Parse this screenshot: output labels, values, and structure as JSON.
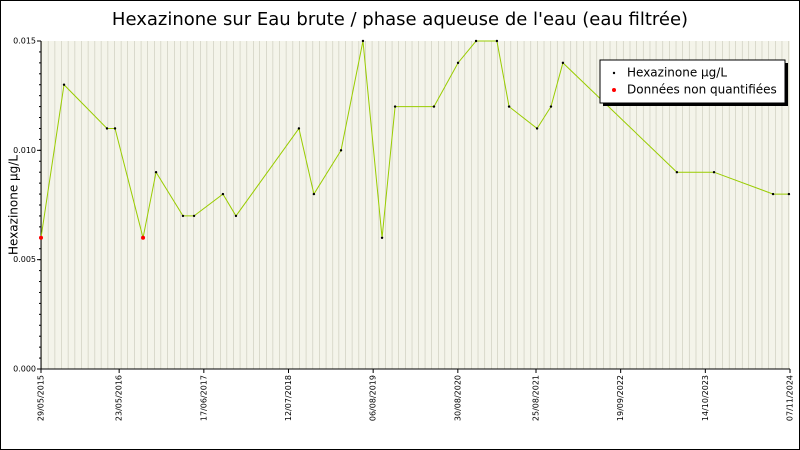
{
  "chart_data": {
    "type": "line",
    "title": "Hexazinone sur Eau brute / phase aqueuse de l'eau (eau filtrée)",
    "y_label": "Hexazinone µg/L",
    "xlim": [
      "2015-05-29",
      "2024-11-07"
    ],
    "xticks": [
      {
        "value": "2015-05-29",
        "label": "29/05/2015"
      },
      {
        "value": "2016-05-23",
        "label": "23/05/2016"
      },
      {
        "value": "2017-06-17",
        "label": "17/06/2017"
      },
      {
        "value": "2018-07-12",
        "label": "12/07/2018"
      },
      {
        "value": "2019-08-06",
        "label": "06/08/2019"
      },
      {
        "value": "2020-08-30",
        "label": "30/08/2020"
      },
      {
        "value": "2021-08-25",
        "label": "25/08/2021"
      },
      {
        "value": "2022-09-19",
        "label": "19/09/2022"
      },
      {
        "value": "2023-10-14",
        "label": "14/10/2023"
      },
      {
        "value": "2024-11-07",
        "label": "07/11/2024"
      }
    ],
    "ylim": [
      0,
      0.015
    ],
    "yticks": [
      {
        "value": 0,
        "label": "0.000"
      },
      {
        "value": 0.005,
        "label": "0.005"
      },
      {
        "value": 0.01,
        "label": "0.010"
      },
      {
        "value": 0.015,
        "label": "0.015"
      }
    ],
    "legend": "top-right",
    "series": [
      {
        "name": "Hexazinone µg/L",
        "color": "#99cc00",
        "marker_color": "#000000",
        "x": [
          "2015-05-29",
          "2015-09-12",
          "2016-03-28",
          "2016-05-04",
          "2016-09-10",
          "2016-11-09",
          "2017-03-13",
          "2017-05-03",
          "2017-09-13",
          "2017-11-12",
          "2018-08-29",
          "2018-11-06",
          "2019-03-11",
          "2019-06-20",
          "2019-09-16",
          "2019-11-15",
          "2020-05-12",
          "2020-08-31",
          "2020-11-22",
          "2021-02-26",
          "2021-04-23",
          "2021-08-30",
          "2021-11-02",
          "2021-12-27",
          "2023-06-05",
          "2023-11-23",
          "2024-08-21",
          "2024-11-02"
        ],
        "values": [
          0.006,
          0.013,
          0.011,
          0.011,
          0.006,
          0.009,
          0.007,
          0.007,
          0.008,
          0.007,
          0.011,
          0.008,
          0.01,
          0.015,
          0.006,
          0.012,
          0.012,
          0.014,
          0.015,
          0.015,
          0.012,
          0.011,
          0.012,
          0.014,
          0.009,
          0.009,
          0.008,
          0.008
        ]
      },
      {
        "name": "Données non quantifiées",
        "color": "#ff0000",
        "marker_only": true,
        "x": [
          "2015-05-29",
          "2016-09-10"
        ],
        "values": [
          0.006,
          0.006
        ]
      }
    ]
  }
}
